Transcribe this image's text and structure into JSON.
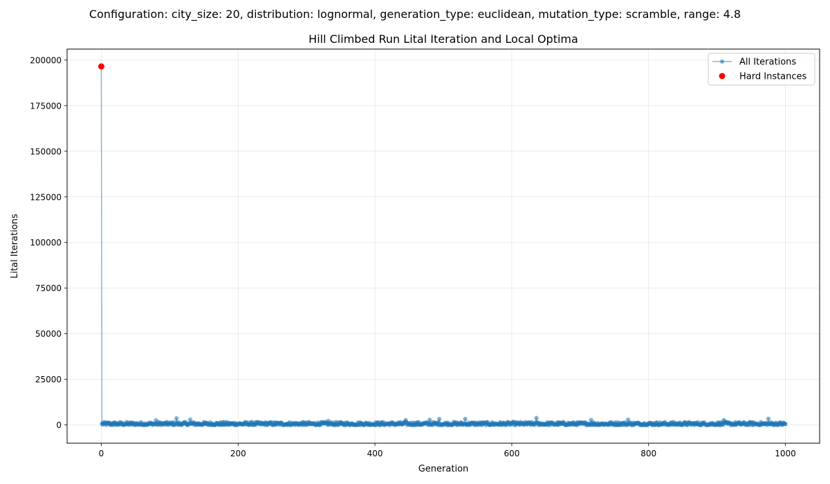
{
  "suptitle": "Configuration: city_size: 20, distribution: lognormal, generation_type: euclidean, mutation_type: scramble, range: 4.8",
  "chart_data": {
    "type": "line",
    "title": "Hill Climbed Run Lital Iteration and Local Optima",
    "xlabel": "Generation",
    "ylabel": "Lital Iterations",
    "xlim": [
      -50,
      1050
    ],
    "ylim": [
      -10000,
      206000
    ],
    "xticks": [
      0,
      200,
      400,
      600,
      800,
      1000
    ],
    "yticks": [
      0,
      25000,
      50000,
      75000,
      100000,
      125000,
      150000,
      175000,
      200000
    ],
    "grid": true,
    "legend_position": "top-right",
    "series": [
      {
        "name": "All Iterations",
        "color": "#1f77b4",
        "x_start": 0,
        "x_end": 1000,
        "first_value": 196500,
        "typical_range": [
          0,
          1600
        ],
        "spikes": [
          {
            "x": 80,
            "y": 2500
          },
          {
            "x": 110,
            "y": 3600
          },
          {
            "x": 130,
            "y": 2900
          },
          {
            "x": 332,
            "y": 2200
          },
          {
            "x": 445,
            "y": 2600
          },
          {
            "x": 480,
            "y": 2800
          },
          {
            "x": 494,
            "y": 3200
          },
          {
            "x": 532,
            "y": 3300
          },
          {
            "x": 636,
            "y": 3800
          },
          {
            "x": 716,
            "y": 2700
          },
          {
            "x": 770,
            "y": 2900
          },
          {
            "x": 910,
            "y": 2600
          },
          {
            "x": 975,
            "y": 3400
          }
        ]
      },
      {
        "name": "Hard Instances",
        "color": "#ff0000",
        "points": [
          {
            "x": 0,
            "y": 196500
          }
        ]
      }
    ]
  }
}
